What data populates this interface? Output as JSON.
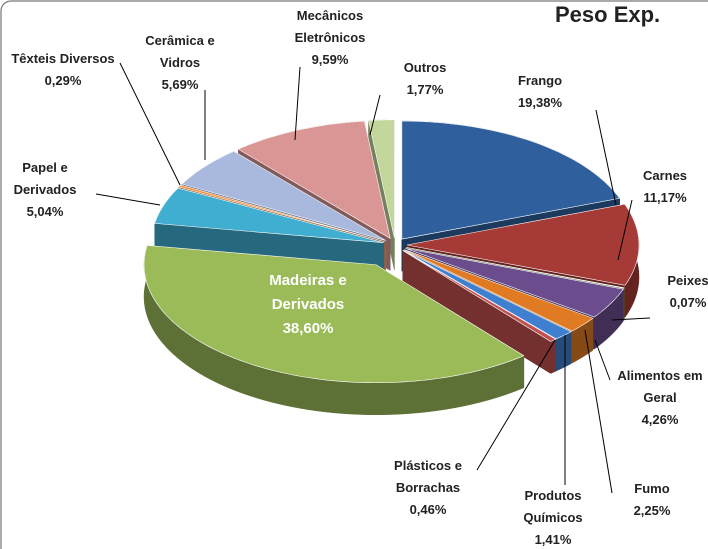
{
  "chart_data": {
    "type": "pie",
    "title": "Peso Exp.",
    "categories": [
      "Frango",
      "Carnes",
      "Peixes",
      "Alimentos em\nGeral",
      "Fumo",
      "Produtos\nQuímicos",
      "Plásticos e\nBorrachas",
      "Madeiras e\nDerivados",
      "Papel e\nDerivados",
      "Têxteis Diversos",
      "Cerâmica e\nVidros",
      "Mecânicos\nEletrônicos",
      "Outros"
    ],
    "values": [
      19.38,
      11.17,
      0.07,
      4.26,
      2.25,
      1.41,
      0.46,
      38.6,
      5.04,
      0.29,
      5.69,
      9.59,
      1.77
    ],
    "value_labels": [
      "19,38%",
      "11,17%",
      "0,07%",
      "4,26%",
      "2,25%",
      "1,41%",
      "0,46%",
      "38,60%",
      "5,04%",
      "0,29%",
      "5,69%",
      "9,59%",
      "1,77%"
    ],
    "colors": [
      "#2f5f9c",
      "#a63a37",
      "#77933c",
      "#6b4d8e",
      "#e07b24",
      "#3f7fcf",
      "#c0504d",
      "#9bbb59",
      "#3faed0",
      "#f79646",
      "#a9b8dd",
      "#d99694",
      "#c3d69b"
    ]
  }
}
